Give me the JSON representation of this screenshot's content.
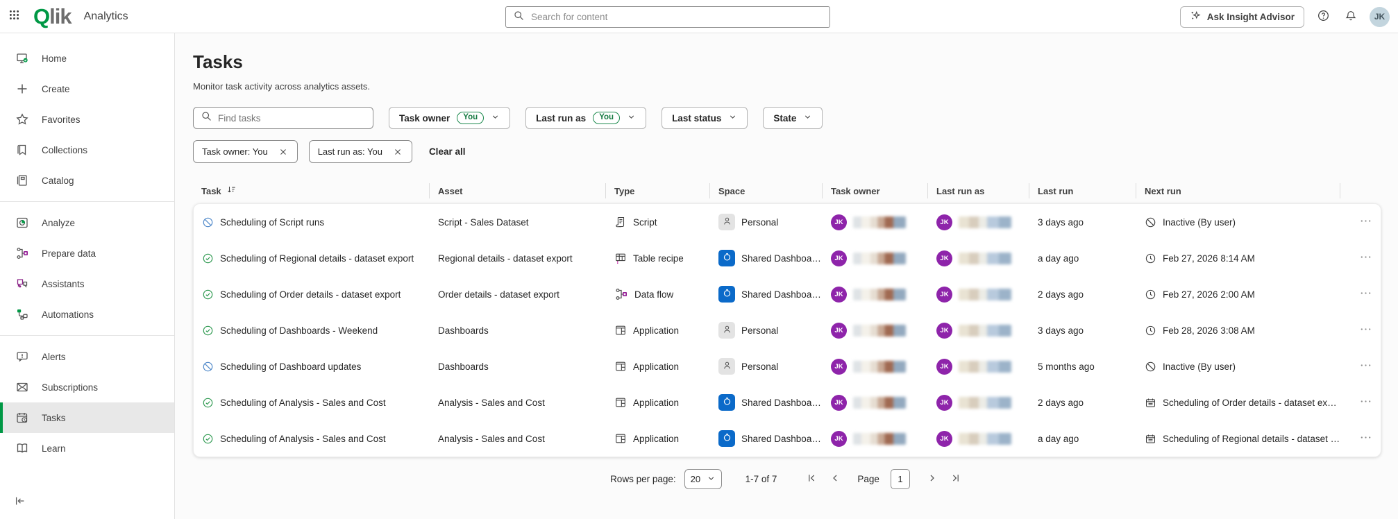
{
  "colors": {
    "accent_green": "#009845",
    "success_green": "#2e9950",
    "inactive_blue": "#4d87c9",
    "shared_blue": "#0b6ac9",
    "avatar_purple": "#8e24aa",
    "topbar_avatar_bg": "#c3d5de"
  },
  "topbar": {
    "brand_q": "Q",
    "brand_rest": "lik",
    "product": "Analytics",
    "search_placeholder": "Search for content",
    "ask_insight_advisor": "Ask Insight Advisor",
    "avatar_initials": "JK"
  },
  "sidebar": {
    "items": [
      {
        "label": "Home",
        "icon": "home"
      },
      {
        "label": "Create",
        "icon": "create"
      },
      {
        "label": "Favorites",
        "icon": "favorites"
      },
      {
        "label": "Collections",
        "icon": "collections"
      },
      {
        "label": "Catalog",
        "icon": "catalog",
        "divider_after": true
      },
      {
        "label": "Analyze",
        "icon": "analyze"
      },
      {
        "label": "Prepare data",
        "icon": "data-flow"
      },
      {
        "label": "Assistants",
        "icon": "assistants"
      },
      {
        "label": "Automations",
        "icon": "automations",
        "divider_after": true
      },
      {
        "label": "Alerts",
        "icon": "alerts"
      },
      {
        "label": "Subscriptions",
        "icon": "subscriptions"
      },
      {
        "label": "Tasks",
        "icon": "tasks",
        "active": true
      },
      {
        "label": "Learn",
        "icon": "learn"
      }
    ]
  },
  "page": {
    "title": "Tasks",
    "subtitle": "Monitor task activity across analytics assets."
  },
  "filters": {
    "find_placeholder": "Find tasks",
    "dropdowns": [
      {
        "label": "Task owner",
        "badge": "You"
      },
      {
        "label": "Last run as",
        "badge": "You"
      },
      {
        "label": "Last status"
      },
      {
        "label": "State"
      }
    ],
    "chips": [
      "Task owner: You",
      "Last run as: You"
    ],
    "clear_all": "Clear all"
  },
  "table": {
    "columns": [
      "Task",
      "Asset",
      "Type",
      "Space",
      "Task owner",
      "Last run as",
      "Last run",
      "Next run"
    ],
    "rows": [
      {
        "status_icon": "slash-circle",
        "task": "Scheduling of Script runs",
        "asset": "Script - Sales Dataset",
        "type": {
          "icon": "script",
          "label": "Script"
        },
        "space": {
          "kind": "personal",
          "label": "Personal"
        },
        "owner": "JK",
        "last_run_as": "JK",
        "last_run": "3 days ago",
        "next_run": {
          "icon": "inactive",
          "label": "Inactive (By user)"
        }
      },
      {
        "status_icon": "check-circle",
        "task": "Scheduling of Regional details - dataset export",
        "asset": "Regional details - dataset export",
        "type": {
          "icon": "table-recipe",
          "label": "Table recipe"
        },
        "space": {
          "kind": "shared",
          "label": "Shared Dashboards"
        },
        "owner": "JK",
        "last_run_as": "JK",
        "last_run": "a day ago",
        "next_run": {
          "icon": "clock",
          "label": "Feb 27, 2026 8:14 AM"
        }
      },
      {
        "status_icon": "check-circle",
        "task": "Scheduling of Order details - dataset export",
        "asset": "Order details - dataset export",
        "type": {
          "icon": "data-flow",
          "label": "Data flow"
        },
        "space": {
          "kind": "shared",
          "label": "Shared Dashboards"
        },
        "owner": "JK",
        "last_run_as": "JK",
        "last_run": "2 days ago",
        "next_run": {
          "icon": "clock",
          "label": "Feb 27, 2026 2:00 AM"
        }
      },
      {
        "status_icon": "check-circle",
        "task": "Scheduling of Dashboards - Weekend",
        "asset": "Dashboards",
        "type": {
          "icon": "application",
          "label": "Application"
        },
        "space": {
          "kind": "personal",
          "label": "Personal"
        },
        "owner": "JK",
        "last_run_as": "JK",
        "last_run": "3 days ago",
        "next_run": {
          "icon": "clock",
          "label": "Feb 28, 2026 3:08 AM"
        }
      },
      {
        "status_icon": "slash-circle",
        "task": "Scheduling of Dashboard updates",
        "asset": "Dashboards",
        "type": {
          "icon": "application",
          "label": "Application"
        },
        "space": {
          "kind": "personal",
          "label": "Personal"
        },
        "owner": "JK",
        "last_run_as": "JK",
        "last_run": "5 months ago",
        "next_run": {
          "icon": "inactive",
          "label": "Inactive (By user)"
        }
      },
      {
        "status_icon": "check-circle",
        "task": "Scheduling of Analysis - Sales and Cost",
        "asset": "Analysis - Sales and Cost",
        "type": {
          "icon": "application",
          "label": "Application"
        },
        "space": {
          "kind": "shared",
          "label": "Shared Dashboards"
        },
        "owner": "JK",
        "last_run_as": "JK",
        "last_run": "2 days ago",
        "next_run": {
          "icon": "task",
          "label": "Scheduling of Order details - dataset export"
        }
      },
      {
        "status_icon": "check-circle",
        "task": "Scheduling of Analysis - Sales and Cost",
        "asset": "Analysis - Sales and Cost",
        "type": {
          "icon": "application",
          "label": "Application"
        },
        "space": {
          "kind": "shared",
          "label": "Shared Dashboards"
        },
        "owner": "JK",
        "last_run_as": "JK",
        "last_run": "a day ago",
        "next_run": {
          "icon": "task",
          "label": "Scheduling of Regional details - dataset export"
        }
      }
    ]
  },
  "pagination": {
    "rows_per_page_label": "Rows per page:",
    "rows_per_page_value": "20",
    "range": "1-7 of 7",
    "page_label": "Page",
    "page_value": "1"
  }
}
